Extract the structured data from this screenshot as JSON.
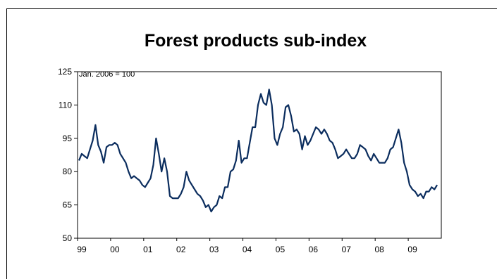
{
  "chart_data": {
    "type": "line",
    "title": "Forest products sub-index",
    "ylabel": "Jan. 2006 = 100",
    "xlabel": "",
    "ylim": [
      50,
      125
    ],
    "yticks": [
      50,
      65,
      80,
      95,
      110,
      125
    ],
    "xticks": [
      "99",
      "00",
      "01",
      "02",
      "03",
      "04",
      "05",
      "06",
      "07",
      "08",
      "09"
    ],
    "grid": false,
    "legend": "none",
    "series": [
      {
        "color": "#0b2d5e",
        "x_start": "1999-01",
        "frequency": "monthly",
        "values": [
          85,
          88,
          87,
          86,
          90,
          94,
          101,
          92,
          89,
          84,
          91,
          92,
          92,
          93,
          92,
          88,
          86,
          84,
          80,
          77,
          78,
          77,
          76,
          74,
          73,
          75,
          77,
          83,
          95,
          88,
          80,
          86,
          80,
          69,
          68,
          68,
          68,
          70,
          73,
          80,
          76,
          74,
          72,
          70,
          69,
          67,
          64,
          65,
          62,
          64,
          65,
          69,
          68,
          73,
          73,
          80,
          81,
          85,
          94,
          84,
          86,
          86,
          93,
          100,
          100,
          110,
          115,
          111,
          110,
          117,
          110,
          95,
          92,
          97,
          100,
          109,
          110,
          105,
          98,
          99,
          97,
          90,
          96,
          92,
          94,
          97,
          100,
          99,
          97,
          99,
          97,
          94,
          93,
          90,
          86,
          87,
          88,
          90,
          88,
          86,
          86,
          88,
          92,
          91,
          90,
          87,
          85,
          88,
          86,
          84,
          84,
          84,
          86,
          90,
          91,
          95,
          99,
          93,
          84,
          80,
          74,
          72,
          71,
          69,
          70,
          68,
          71,
          71,
          73,
          72,
          74
        ]
      }
    ]
  }
}
